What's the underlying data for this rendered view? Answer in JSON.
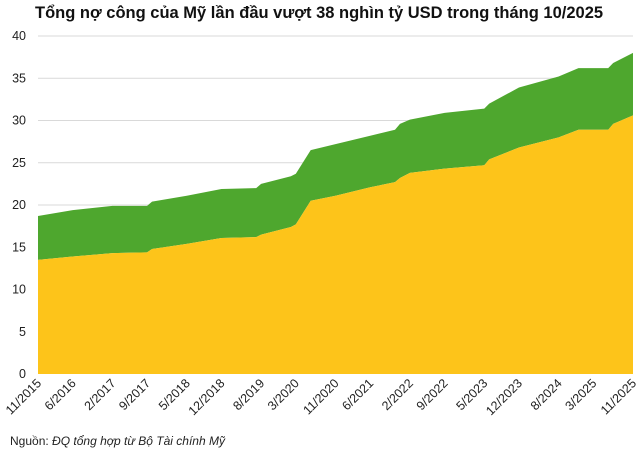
{
  "chart_data": {
    "type": "area",
    "title": "Tổng nợ công của Mỹ lần đầu vượt 38 nghìn tỷ USD trong tháng 10/2025",
    "xlabel": "",
    "ylabel": "",
    "ylim": [
      0,
      40
    ],
    "yticks": [
      0,
      5,
      10,
      15,
      20,
      25,
      30,
      35,
      40
    ],
    "xtick_labels": [
      "11/2015",
      "6/2016",
      "2/2017",
      "9/2017",
      "5/2018",
      "12/2018",
      "8/2019",
      "3/2020",
      "11/2020",
      "6/2021",
      "2/2022",
      "9/2022",
      "5/2023",
      "12/2023",
      "8/2024",
      "3/2025",
      "11/2025"
    ],
    "grid": true,
    "stacked": true,
    "x": [
      "11/2015",
      "6/2016",
      "2/2017",
      "9/2017",
      "10/2017",
      "5/2018",
      "12/2018",
      "7/2019",
      "8/2019",
      "2/2020",
      "3/2020",
      "6/2020",
      "11/2020",
      "6/2021",
      "11/2021",
      "12/2021",
      "2/2022",
      "9/2022",
      "5/2023",
      "6/2023",
      "12/2023",
      "8/2024",
      "12/2024",
      "6/2025",
      "7/2025",
      "11/2025"
    ],
    "series": [
      {
        "color": "#fdc41a",
        "values": [
          13.5,
          13.9,
          14.3,
          14.4,
          14.8,
          15.4,
          16.1,
          16.2,
          16.5,
          17.4,
          17.7,
          20.5,
          21.1,
          22.1,
          22.7,
          23.2,
          23.8,
          24.3,
          24.7,
          25.4,
          26.8,
          28.0,
          28.9,
          28.9,
          29.6,
          30.6
        ]
      },
      {
        "color": "#4ea72e",
        "total_values": [
          18.7,
          19.4,
          19.9,
          19.9,
          20.4,
          21.1,
          21.9,
          22.0,
          22.5,
          23.4,
          23.7,
          26.5,
          27.2,
          28.2,
          28.9,
          29.6,
          30.1,
          30.9,
          31.4,
          32.0,
          33.9,
          35.2,
          36.2,
          36.2,
          36.8,
          38.0
        ]
      }
    ]
  },
  "source": {
    "label": "Nguồn:",
    "text": "ĐQ tổng hợp từ Bộ Tài chính Mỹ"
  }
}
